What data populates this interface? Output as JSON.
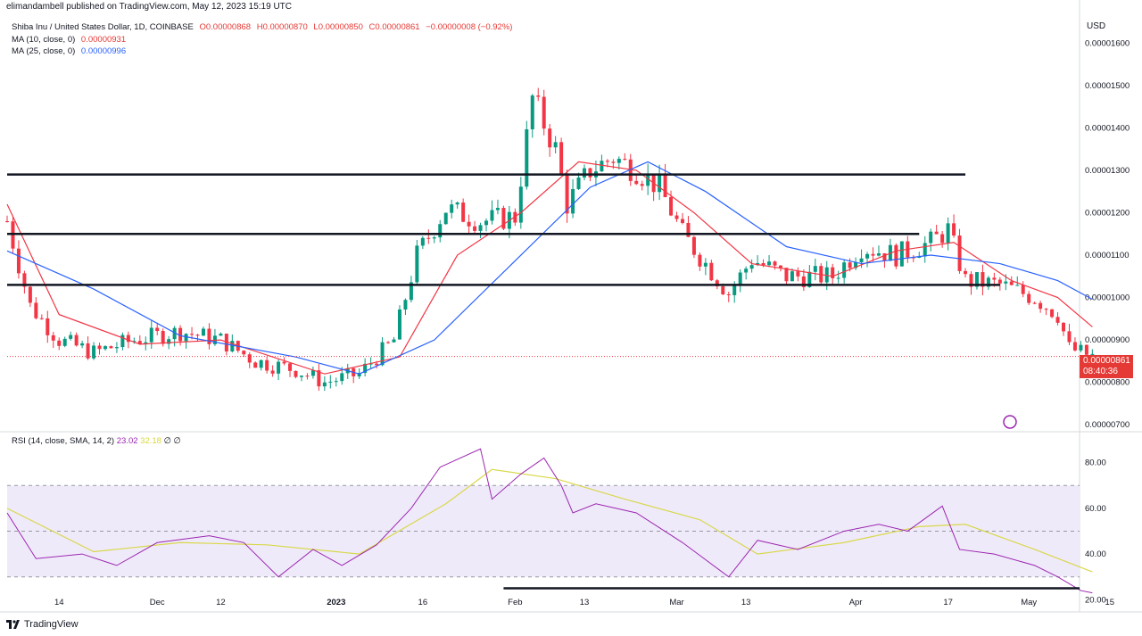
{
  "header": {
    "published": "elimandambell published on TradingView.com, May 12, 2023 15:19 UTC",
    "symbol": "Shiba Inu / United States Dollar, 1D, COINBASE",
    "ohlc": {
      "o": "O0.00000868",
      "h": "H0.00000870",
      "l": "L0.00000850",
      "c": "C0.00000861",
      "chg": "−0.00000008 (−0.92%)"
    },
    "ma10": {
      "label": "MA (10, close, 0)",
      "value": "0.00000931"
    },
    "ma25": {
      "label": "MA (25, close, 0)",
      "value": "0.00000996"
    }
  },
  "currency": "USD",
  "price_tag": {
    "price": "0.00000861",
    "timer": "08:40:36"
  },
  "rsi_legend": {
    "label": "RSI (14, close, SMA, 14, 2)",
    "rsi": "23.02",
    "sma": "32.18",
    "extra": "∅ ∅"
  },
  "brand": "TradingView",
  "colors": {
    "up": "#089981",
    "down": "#f23645",
    "ma10": "#f23645",
    "ma25": "#2962ff",
    "rsi": "#9c27b0",
    "rsi_sma": "#d8d84a",
    "band": "#efeafa"
  },
  "chart_data": [
    {
      "type": "candlestick",
      "title": "Shiba Inu / United States Dollar, 1D, COINBASE",
      "ylim": [
        6.9e-06,
        1.63e-05
      ],
      "y_ticks": [
        "0.00001600",
        "0.00001500",
        "0.00001400",
        "0.00001300",
        "0.00001200",
        "0.00001100",
        "0.00001000",
        "0.00000900",
        "0.00000800",
        "0.00000700"
      ],
      "x_ticks": [
        "14",
        "Dec",
        "12",
        "2023",
        "16",
        "Feb",
        "13",
        "Mar",
        "13",
        "Apr",
        "17",
        "May",
        "15"
      ],
      "close_path": [
        [
          "2022-11-05",
          1.18e-05
        ],
        [
          "2022-11-09",
          9.8e-06
        ],
        [
          "2022-11-14",
          9e-06
        ],
        [
          "2022-11-20",
          8.7e-06
        ],
        [
          "2022-11-27",
          9e-06
        ],
        [
          "2022-12-05",
          9.2e-06
        ],
        [
          "2022-12-12",
          9e-06
        ],
        [
          "2022-12-18",
          8.5e-06
        ],
        [
          "2022-12-25",
          8.3e-06
        ],
        [
          "2022-12-30",
          8e-06
        ],
        [
          "2023-01-05",
          8.2e-06
        ],
        [
          "2023-01-11",
          9e-06
        ],
        [
          "2023-01-15",
          1.1e-05
        ],
        [
          "2023-01-20",
          1.21e-05
        ],
        [
          "2023-01-26",
          1.18e-05
        ],
        [
          "2023-02-01",
          1.19e-05
        ],
        [
          "2023-02-04",
          1.47e-05
        ],
        [
          "2023-02-08",
          1.35e-05
        ],
        [
          "2023-02-10",
          1.22e-05
        ],
        [
          "2023-02-14",
          1.3e-05
        ],
        [
          "2023-02-18",
          1.33e-05
        ],
        [
          "2023-02-22",
          1.3e-05
        ],
        [
          "2023-02-26",
          1.26e-05
        ],
        [
          "2023-03-02",
          1.15e-05
        ],
        [
          "2023-03-06",
          1.08e-05
        ],
        [
          "2023-03-10",
          1.01e-05
        ],
        [
          "2023-03-14",
          1.09e-05
        ],
        [
          "2023-03-20",
          1.05e-05
        ],
        [
          "2023-03-28",
          1.05e-05
        ],
        [
          "2023-04-02",
          1.12e-05
        ],
        [
          "2023-04-08",
          1.1e-05
        ],
        [
          "2023-04-14",
          1.13e-05
        ],
        [
          "2023-04-17",
          1.16e-05
        ],
        [
          "2023-04-20",
          1.04e-05
        ],
        [
          "2023-04-26",
          1.03e-05
        ],
        [
          "2023-05-02",
          1e-05
        ],
        [
          "2023-05-06",
          9.6e-06
        ],
        [
          "2023-05-08",
          8.8e-06
        ],
        [
          "2023-05-12",
          8.61e-06
        ]
      ],
      "ma10_path": [
        [
          "2022-11-05",
          1.22e-05
        ],
        [
          "2022-11-14",
          9.6e-06
        ],
        [
          "2022-11-28",
          8.9e-06
        ],
        [
          "2022-12-12",
          9e-06
        ],
        [
          "2022-12-30",
          8.2e-06
        ],
        [
          "2023-01-12",
          8.6e-06
        ],
        [
          "2023-01-22",
          1.1e-05
        ],
        [
          "2023-02-02",
          1.2e-05
        ],
        [
          "2023-02-12",
          1.32e-05
        ],
        [
          "2023-02-22",
          1.3e-05
        ],
        [
          "2023-03-04",
          1.2e-05
        ],
        [
          "2023-03-14",
          1.08e-05
        ],
        [
          "2023-03-28",
          1.05e-05
        ],
        [
          "2023-04-08",
          1.11e-05
        ],
        [
          "2023-04-18",
          1.13e-05
        ],
        [
          "2023-04-28",
          1.04e-05
        ],
        [
          "2023-05-06",
          1e-05
        ],
        [
          "2023-05-12",
          9.31e-06
        ]
      ],
      "ma25_path": [
        [
          "2022-11-05",
          1.11e-05
        ],
        [
          "2022-11-20",
          1.02e-05
        ],
        [
          "2022-12-05",
          9.1e-06
        ],
        [
          "2022-12-25",
          8.6e-06
        ],
        [
          "2023-01-05",
          8.2e-06
        ],
        [
          "2023-01-18",
          9e-06
        ],
        [
          "2023-02-02",
          1.1e-05
        ],
        [
          "2023-02-14",
          1.26e-05
        ],
        [
          "2023-02-24",
          1.32e-05
        ],
        [
          "2023-03-06",
          1.25e-05
        ],
        [
          "2023-03-20",
          1.12e-05
        ],
        [
          "2023-04-02",
          1.08e-05
        ],
        [
          "2023-04-14",
          1.1e-05
        ],
        [
          "2023-04-26",
          1.08e-05
        ],
        [
          "2023-05-06",
          1.04e-05
        ],
        [
          "2023-05-12",
          9.96e-06
        ]
      ],
      "horizontal_levels": [
        {
          "y": 1.29e-05,
          "from": "2022-11-05",
          "to": "2023-04-20"
        },
        {
          "y": 1.15e-05,
          "from": "2022-11-05",
          "to": "2023-04-12"
        },
        {
          "y": 1.03e-05,
          "from": "2022-11-05",
          "to": "2023-04-26"
        }
      ],
      "last_price": 8.61e-06
    },
    {
      "type": "line",
      "title": "RSI (14, close, SMA, 14, 2)",
      "ylim": [
        17,
        90
      ],
      "y_ticks": [
        "80.00",
        "60.00",
        "40.00",
        "20.00"
      ],
      "band": [
        30,
        70
      ],
      "midline": 50,
      "series": [
        {
          "name": "RSI",
          "points": [
            [
              "2022-11-05",
              58
            ],
            [
              "2022-11-10",
              38
            ],
            [
              "2022-11-18",
              40
            ],
            [
              "2022-11-24",
              35
            ],
            [
              "2022-12-01",
              45
            ],
            [
              "2022-12-10",
              48
            ],
            [
              "2022-12-16",
              45
            ],
            [
              "2022-12-22",
              30
            ],
            [
              "2022-12-28",
              42
            ],
            [
              "2023-01-02",
              35
            ],
            [
              "2023-01-08",
              44
            ],
            [
              "2023-01-14",
              60
            ],
            [
              "2023-01-19",
              78
            ],
            [
              "2023-01-26",
              86
            ],
            [
              "2023-01-28",
              64
            ],
            [
              "2023-02-02",
              75
            ],
            [
              "2023-02-06",
              82
            ],
            [
              "2023-02-09",
              70
            ],
            [
              "2023-02-11",
              58
            ],
            [
              "2023-02-15",
              62
            ],
            [
              "2023-02-22",
              58
            ],
            [
              "2023-03-02",
              45
            ],
            [
              "2023-03-10",
              30
            ],
            [
              "2023-03-15",
              46
            ],
            [
              "2023-03-22",
              42
            ],
            [
              "2023-03-30",
              50
            ],
            [
              "2023-04-05",
              53
            ],
            [
              "2023-04-10",
              50
            ],
            [
              "2023-04-16",
              61
            ],
            [
              "2023-04-19",
              42
            ],
            [
              "2023-04-25",
              40
            ],
            [
              "2023-05-02",
              35
            ],
            [
              "2023-05-06",
              30
            ],
            [
              "2023-05-10",
              24
            ],
            [
              "2023-05-12",
              23.02
            ]
          ]
        },
        {
          "name": "SMA",
          "points": [
            [
              "2022-11-05",
              60
            ],
            [
              "2022-11-20",
              41
            ],
            [
              "2022-12-05",
              45
            ],
            [
              "2022-12-20",
              44
            ],
            [
              "2023-01-05",
              40
            ],
            [
              "2023-01-20",
              62
            ],
            [
              "2023-01-28",
              77
            ],
            [
              "2023-02-08",
              73
            ],
            [
              "2023-02-20",
              64
            ],
            [
              "2023-03-05",
              55
            ],
            [
              "2023-03-15",
              40
            ],
            [
              "2023-03-30",
              45
            ],
            [
              "2023-04-12",
              52
            ],
            [
              "2023-04-20",
              53
            ],
            [
              "2023-05-02",
              42
            ],
            [
              "2023-05-12",
              32.18
            ]
          ]
        }
      ],
      "support_line": {
        "y": 25,
        "from": "2023-01-30",
        "to": "2023-05-20"
      }
    }
  ]
}
